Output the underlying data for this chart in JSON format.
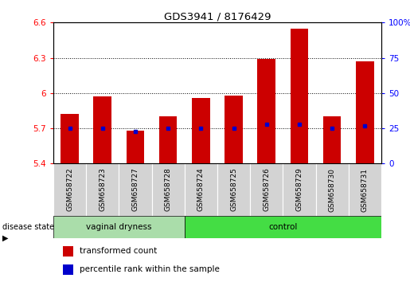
{
  "title": "GDS3941 / 8176429",
  "samples": [
    "GSM658722",
    "GSM658723",
    "GSM658727",
    "GSM658728",
    "GSM658724",
    "GSM658725",
    "GSM658726",
    "GSM658729",
    "GSM658730",
    "GSM658731"
  ],
  "groups": [
    "vaginal dryness",
    "vaginal dryness",
    "vaginal dryness",
    "vaginal dryness",
    "control",
    "control",
    "control",
    "control",
    "control",
    "control"
  ],
  "bar_tops": [
    5.82,
    5.97,
    5.68,
    5.8,
    5.96,
    5.98,
    6.29,
    6.55,
    5.8,
    6.27
  ],
  "bar_bottoms": [
    5.4,
    5.4,
    5.4,
    5.4,
    5.4,
    5.4,
    5.4,
    5.4,
    5.4,
    5.4
  ],
  "blue_dots": [
    5.7,
    5.7,
    5.67,
    5.7,
    5.7,
    5.7,
    5.735,
    5.735,
    5.7,
    5.72
  ],
  "ylim_left": [
    5.4,
    6.6
  ],
  "ylim_right": [
    0,
    100
  ],
  "yticks_left": [
    5.4,
    5.7,
    6.0,
    6.3,
    6.6
  ],
  "yticks_right": [
    0,
    25,
    50,
    75,
    100
  ],
  "ytick_labels_left": [
    "5.4",
    "5.7",
    "6",
    "6.3",
    "6.6"
  ],
  "ytick_labels_right": [
    "0",
    "25",
    "50",
    "75",
    "100%"
  ],
  "bar_color": "#cc0000",
  "dot_color": "#0000cc",
  "legend_items": [
    "transformed count",
    "percentile rank within the sample"
  ],
  "vaginal_dryness_color": "#aaddaa",
  "control_color": "#44dd44",
  "label_bg_color": "#d3d3d3",
  "figsize": [
    5.15,
    3.54
  ],
  "dpi": 100
}
